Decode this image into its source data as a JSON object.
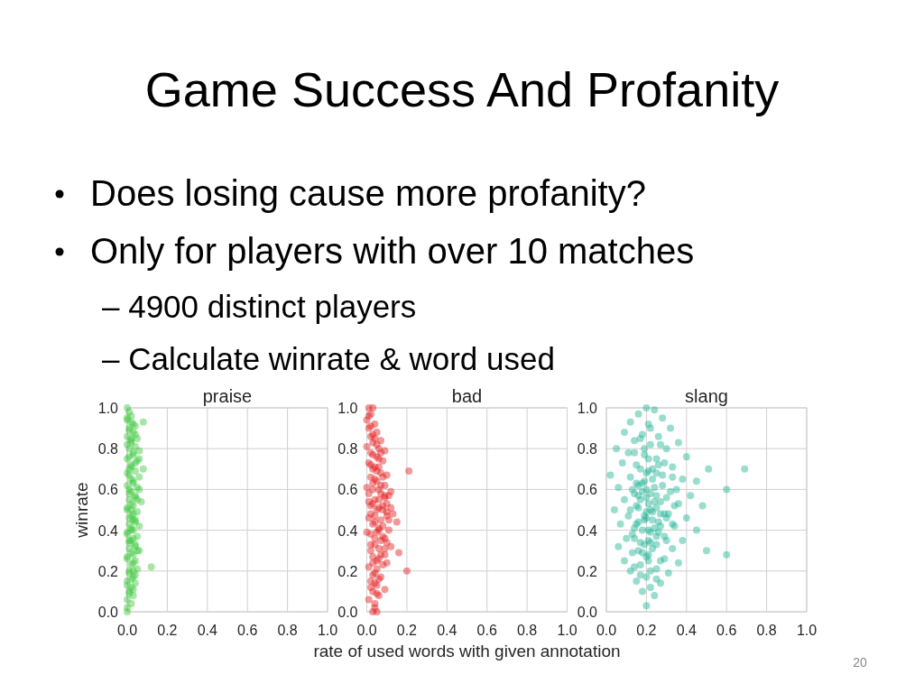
{
  "chart_data": [
    {
      "type": "other",
      "title": "Game Success And Profanity",
      "annotations": [
        "Does losing cause more profanity?",
        "Only for players with over 10 matches",
        "– 4900 distinct players",
        "– Calculate winrate & word used",
        "20"
      ]
    },
    {
      "type": "scatter",
      "title": "praise",
      "ylabel": "winrate",
      "color": "#3cc83c",
      "marker": "circle",
      "grid": true,
      "xlim": [
        0,
        1
      ],
      "ylim": [
        0,
        1
      ],
      "xticks": [
        {
          "value": 0,
          "label": "0.0"
        },
        0.2,
        0.4,
        0.6,
        0.8,
        {
          "value": 1,
          "label": "1.0"
        }
      ],
      "yticks": [
        {
          "value": 0,
          "label": "0.0"
        },
        0.2,
        0.4,
        0.6,
        0.8,
        {
          "value": 1,
          "label": "1.0"
        }
      ],
      "x": [
        0,
        0.01,
        0,
        0.02,
        0.04,
        0.01,
        0.03,
        0,
        0.05,
        0.02,
        0.04,
        0.01,
        0.06,
        0.03,
        0,
        0.05,
        0.02,
        0.08,
        0.04,
        0.01,
        0.06,
        0.03,
        0,
        0.05,
        0.02,
        0.04,
        0.01,
        0.07,
        0.03,
        0,
        0.05,
        0.02,
        0.04,
        0.01,
        0.06,
        0.03,
        0,
        0.05,
        0.02,
        0.04,
        0.01,
        0.06,
        0.03,
        0,
        0.04,
        0.02,
        0.12,
        0.05,
        0.01,
        0.03,
        0,
        0.04,
        0.02,
        0.01,
        0.03,
        0,
        0.02,
        0,
        0,
        0.08,
        0.01,
        0.02,
        0.01,
        0.02,
        0.03,
        0.01,
        0.02,
        0.02,
        0,
        0.03,
        0.01,
        0.04,
        0.02,
        0,
        0.03,
        0.01,
        0.04,
        0.02,
        0,
        0.03,
        0.01,
        0.04,
        0.02,
        0,
        0.03,
        0.01,
        0.04,
        0.02,
        0,
        0.03,
        0.01,
        0.04,
        0.02,
        0,
        0.03,
        0.01,
        0.04,
        0.02,
        0,
        0.03,
        0.01,
        0.05,
        0.06,
        0.06,
        0.05,
        0.02,
        0.03
      ],
      "values": [
        1,
        0.98,
        0.95,
        0.93,
        0.91,
        0.9,
        0.88,
        0.86,
        0.85,
        0.83,
        0.81,
        0.8,
        0.79,
        0.77,
        0.75,
        0.74,
        0.72,
        0.7,
        0.69,
        0.67,
        0.66,
        0.64,
        0.62,
        0.61,
        0.59,
        0.57,
        0.55,
        0.54,
        0.52,
        0.5,
        0.49,
        0.47,
        0.45,
        0.43,
        0.42,
        0.4,
        0.38,
        0.37,
        0.35,
        0.33,
        0.31,
        0.3,
        0.28,
        0.26,
        0.25,
        0.23,
        0.22,
        0.21,
        0.19,
        0.17,
        0.15,
        0.14,
        0.12,
        0.1,
        0.08,
        0.06,
        0.04,
        0.02,
        0,
        0.93,
        0.7,
        0.5,
        0.35,
        0.65,
        0.45,
        0.58,
        0.4,
        0.96,
        0.94,
        0.92,
        0.89,
        0.87,
        0.84,
        0.82,
        0.78,
        0.76,
        0.73,
        0.71,
        0.68,
        0.63,
        0.6,
        0.56,
        0.53,
        0.51,
        0.48,
        0.46,
        0.44,
        0.41,
        0.39,
        0.36,
        0.34,
        0.32,
        0.29,
        0.27,
        0.24,
        0.2,
        0.18,
        0.16,
        0.13,
        0.11,
        0.09,
        0.55,
        0.6,
        0.75,
        0.3,
        0.85,
        0.2
      ]
    },
    {
      "type": "scatter",
      "title": "bad",
      "xlabel": "rate of used words with given annotation",
      "color": "#e41a1c",
      "marker": "circle",
      "grid": true,
      "xlim": [
        0,
        1
      ],
      "ylim": [
        0,
        1
      ],
      "xticks": [
        {
          "value": 0,
          "label": "0.0"
        },
        0.2,
        0.4,
        0.6,
        0.8,
        {
          "value": 1,
          "label": "1.0"
        }
      ],
      "yticks": [
        {
          "value": 0,
          "label": "0.0"
        },
        0.2,
        0.4,
        0.6,
        0.8,
        {
          "value": 1,
          "label": "1.0"
        }
      ],
      "x": [
        0.01,
        0.03,
        0.02,
        0,
        0.04,
        0.01,
        0.05,
        0.02,
        0.07,
        0.03,
        0,
        0.06,
        0.09,
        0.02,
        0.05,
        0.08,
        0.01,
        0.04,
        0.21,
        0.07,
        0.1,
        0.02,
        0.05,
        0.09,
        0,
        0.03,
        0.07,
        0.11,
        0.04,
        0.01,
        0.08,
        0.12,
        0.05,
        0.02,
        0.1,
        0.07,
        0.15,
        0.03,
        0.06,
        0.11,
        0,
        0.08,
        0.04,
        0.1,
        0.02,
        0.06,
        0.16,
        0.09,
        0.03,
        0.05,
        0.08,
        0.01,
        0.2,
        0.04,
        0.07,
        0.02,
        0.05,
        0.09,
        0.03,
        0.06,
        0.01,
        0.04,
        0.03,
        0.05,
        0.06,
        0.04,
        0.03,
        0.02,
        0.01,
        0.02,
        0.03,
        0.04,
        0.05,
        0.03,
        0.06,
        0.02,
        0.05,
        0.08,
        0.03,
        0.06,
        0.01,
        0.09,
        0.03,
        0.06,
        0.1,
        0.01,
        0.04,
        0.08,
        0.05,
        0.02,
        0.07,
        0.04,
        0.09,
        0.02,
        0.06,
        0.03,
        0.05,
        0.03,
        0.06,
        0.04,
        0.02,
        0.05,
        0.04,
        0.07,
        0.09,
        0.08,
        0.11,
        0.06,
        0.09,
        0.12,
        0.13,
        0.1,
        0.12,
        0.06,
        0.07,
        0.07,
        0.1,
        0.04
      ],
      "values": [
        1,
        1,
        0.97,
        0.94,
        0.92,
        0.9,
        0.88,
        0.86,
        0.84,
        0.83,
        0.81,
        0.8,
        0.79,
        0.78,
        0.76,
        0.74,
        0.73,
        0.71,
        0.69,
        0.68,
        0.67,
        0.66,
        0.64,
        0.62,
        0.61,
        0.6,
        0.58,
        0.57,
        0.55,
        0.54,
        0.52,
        0.51,
        0.5,
        0.48,
        0.47,
        0.45,
        0.44,
        0.43,
        0.41,
        0.4,
        0.39,
        0.37,
        0.36,
        0.34,
        0.33,
        0.31,
        0.29,
        0.28,
        0.27,
        0.25,
        0.23,
        0.22,
        0.2,
        0.19,
        0.17,
        0.15,
        0.13,
        0.11,
        0.1,
        0.08,
        0.06,
        0.04,
        0,
        0,
        0.55,
        0.47,
        0.7,
        0.52,
        0.96,
        0.91,
        0.87,
        0.85,
        0.82,
        0.77,
        0.75,
        0.72,
        0.69,
        0.66,
        0.63,
        0.6,
        0.58,
        0.56,
        0.53,
        0.51,
        0.49,
        0.46,
        0.44,
        0.42,
        0.39,
        0.38,
        0.35,
        0.33,
        0.31,
        0.3,
        0.26,
        0.24,
        0.21,
        0.18,
        0.16,
        0.14,
        0.12,
        0.09,
        0.65,
        0.62,
        0.57,
        0.5,
        0.45,
        0.4,
        0.36,
        0.32,
        0.48,
        0.53,
        0.59,
        0.71,
        0.78,
        0.28,
        0.24,
        0.02
      ]
    },
    {
      "type": "scatter",
      "title": "slang",
      "color": "#1db394",
      "marker": "circle",
      "grid": true,
      "xlim": [
        0,
        1
      ],
      "ylim": [
        0,
        1
      ],
      "xticks": [
        {
          "value": 0,
          "label": "0.0"
        },
        {
          "value": 0.2,
          "label": "0.2"
        },
        {
          "value": 0.4,
          "label": "0.4"
        },
        {
          "value": 0.6,
          "label": "0.6"
        },
        {
          "value": 0.8,
          "label": "0.8"
        },
        {
          "value": 1,
          "label": "1.0"
        }
      ],
      "yticks": [
        {
          "value": 0,
          "label": "0.0"
        },
        {
          "value": 0.2,
          "label": "0.2"
        },
        {
          "value": 0.4,
          "label": "0.4"
        },
        {
          "value": 0.6,
          "label": "0.6"
        },
        {
          "value": 0.8,
          "label": "0.8"
        },
        {
          "value": 1,
          "label": "1.0"
        }
      ],
      "x": [
        0.2,
        0.24,
        0.16,
        0.28,
        0.12,
        0.21,
        0.32,
        0.09,
        0.18,
        0.26,
        0.14,
        0.36,
        0.22,
        0.05,
        0.3,
        0.11,
        0.19,
        0.4,
        0.25,
        0.08,
        0.15,
        0.33,
        0.51,
        0.69,
        0.21,
        0.02,
        0.28,
        0.12,
        0.38,
        0.45,
        0.18,
        0.06,
        0.24,
        0.6,
        0.32,
        0.14,
        0.42,
        0.2,
        0.09,
        0.27,
        0.36,
        0.48,
        0.16,
        0.04,
        0.23,
        0.31,
        0.11,
        0.4,
        0.19,
        0.26,
        0.07,
        0.34,
        0.14,
        0.45,
        0.22,
        0.29,
        0.1,
        0.38,
        0.17,
        0.25,
        0.06,
        0.33,
        0.5,
        0.13,
        0.6,
        0.21,
        0.29,
        0.09,
        0.36,
        0.17,
        0.25,
        0.12,
        0.31,
        0.2,
        0.15,
        0.27,
        0.22,
        0.18,
        0.24,
        0.2,
        0.2,
        0.22,
        0.18,
        0.23,
        0.16,
        0.25,
        0.2,
        0.15,
        0.27,
        0.21,
        0.19,
        0.22,
        0.17,
        0.27,
        0.14,
        0.21,
        0.29,
        0.17,
        0.25,
        0.33,
        0.19,
        0.28,
        0.13,
        0.22,
        0.3,
        0.17,
        0.21,
        0.25,
        0.12,
        0.29,
        0.19,
        0.23,
        0.15,
        0.27,
        0.21,
        0.13,
        0.25,
        0.3,
        0.19,
        0.23,
        0.16,
        0.2,
        0.27,
        0.14,
        0.22,
        0.17,
        0.25,
        0.23,
        0.18,
        0.24,
        0.2,
        0.16,
        0.26,
        0.22,
        0.18,
        0.26,
        0.16,
        0.3,
        0.24,
        0.34,
        0.15,
        0.2,
        0.35,
        0.33,
        0.14,
        0.21
      ],
      "values": [
        1,
        0.99,
        0.97,
        0.95,
        0.93,
        0.92,
        0.9,
        0.88,
        0.87,
        0.86,
        0.84,
        0.83,
        0.82,
        0.8,
        0.8,
        0.78,
        0.77,
        0.76,
        0.75,
        0.73,
        0.72,
        0.71,
        0.7,
        0.7,
        0.69,
        0.67,
        0.67,
        0.66,
        0.65,
        0.64,
        0.63,
        0.61,
        0.61,
        0.6,
        0.59,
        0.58,
        0.57,
        0.56,
        0.55,
        0.54,
        0.53,
        0.52,
        0.51,
        0.5,
        0.49,
        0.48,
        0.47,
        0.46,
        0.45,
        0.44,
        0.43,
        0.42,
        0.41,
        0.4,
        0.39,
        0.37,
        0.36,
        0.35,
        0.34,
        0.33,
        0.32,
        0.31,
        0.3,
        0.29,
        0.28,
        0.28,
        0.26,
        0.25,
        0.24,
        0.23,
        0.21,
        0.2,
        0.19,
        0.17,
        0.15,
        0.14,
        0.12,
        0.1,
        0.08,
        0.03,
        0.6,
        0.5,
        0.4,
        0.7,
        0.62,
        0.57,
        0.46,
        0.52,
        0.48,
        0.35,
        0.8,
        0.9,
        0.85,
        0.82,
        0.78,
        0.75,
        0.73,
        0.7,
        0.68,
        0.66,
        0.64,
        0.62,
        0.6,
        0.58,
        0.56,
        0.55,
        0.53,
        0.51,
        0.5,
        0.48,
        0.47,
        0.45,
        0.43,
        0.42,
        0.4,
        0.38,
        0.37,
        0.35,
        0.33,
        0.31,
        0.3,
        0.27,
        0.25,
        0.22,
        0.2,
        0.18,
        0.16,
        0.65,
        0.59,
        0.54,
        0.49,
        0.44,
        0.39,
        0.34,
        0.29,
        0.72,
        0.57,
        0.46,
        0.41,
        0.52,
        0.63,
        0.68,
        0.6,
        0.43,
        0.36,
        0.25
      ]
    }
  ]
}
